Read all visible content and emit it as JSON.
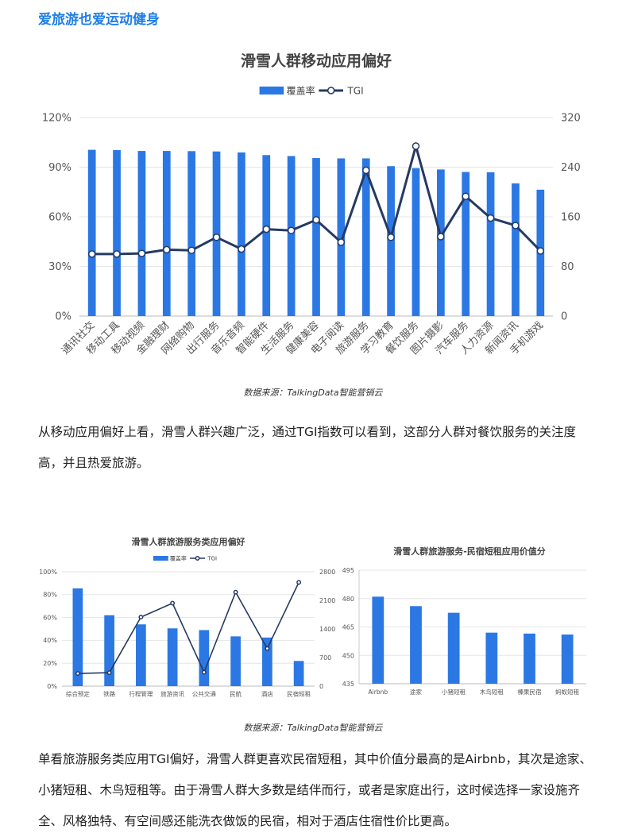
{
  "heading": "爱旅游也爱运动健身",
  "chart_data": [
    {
      "type": "bar",
      "title": "滑雪人群移动应用偏好",
      "legend": {
        "bar": "覆盖率",
        "line": "TGI",
        "position": "top-center"
      },
      "categories": [
        "通讯社交",
        "移动工具",
        "移动视频",
        "金融理财",
        "网络购物",
        "出行服务",
        "音乐音频",
        "智能硬件",
        "生活服务",
        "健康美容",
        "电子阅读",
        "旅游服务",
        "学习教育",
        "餐饮服务",
        "图片摄影",
        "汽车服务",
        "人力资源",
        "新闻资讯",
        "手机游戏"
      ],
      "series": [
        {
          "name": "覆盖率",
          "type": "bar",
          "axis": "left",
          "values": [
            100.5,
            100.3,
            99.8,
            99.8,
            99.7,
            99.5,
            98.9,
            97.3,
            96.7,
            95.5,
            95.3,
            95.3,
            90.6,
            89.4,
            88.6,
            87.1,
            86.9,
            80.2,
            76.4
          ]
        },
        {
          "name": "TGI",
          "type": "line",
          "axis": "right",
          "values": [
            100,
            100,
            101,
            107,
            106,
            127,
            108,
            140,
            138,
            155,
            119,
            235,
            127,
            274,
            128,
            193,
            158,
            146,
            105
          ]
        }
      ],
      "yleft": {
        "ticks": [
          "0%",
          "30%",
          "60%",
          "90%",
          "120%"
        ],
        "range": [
          0,
          120
        ]
      },
      "yright": {
        "ticks": [
          "0",
          "80",
          "160",
          "240",
          "320"
        ],
        "range": [
          0,
          320
        ]
      }
    },
    {
      "type": "bar",
      "title": "滑雪人群旅游服务类应用偏好",
      "legend": {
        "bar": "覆盖率",
        "line": "TGI",
        "position": "top-center"
      },
      "categories": [
        "综合预定",
        "铁路",
        "行程管理",
        "旅游资讯",
        "公共交通",
        "民航",
        "酒店",
        "民宿短租"
      ],
      "series": [
        {
          "name": "覆盖率",
          "type": "bar",
          "axis": "left",
          "values": [
            85.5,
            62,
            54,
            50.5,
            49,
            43.5,
            42.5,
            22
          ]
        },
        {
          "name": "TGI",
          "type": "line",
          "axis": "right",
          "values": [
            310,
            330,
            1690,
            2030,
            340,
            2300,
            920,
            2540
          ]
        }
      ],
      "yleft": {
        "ticks": [
          "0%",
          "20%",
          "40%",
          "60%",
          "80%",
          "100%"
        ],
        "range": [
          0,
          100
        ]
      },
      "yright": {
        "ticks": [
          "0",
          "700",
          "1400",
          "2100",
          "2800"
        ],
        "range": [
          0,
          2800
        ]
      }
    },
    {
      "type": "bar",
      "title": "滑雪人群旅游服务-民宿短租应用价值分",
      "categories": [
        "Airbnb",
        "途家",
        "小猪短租",
        "木鸟短租",
        "榛果民宿",
        "蚂蚁短租"
      ],
      "values": [
        481,
        476,
        472.5,
        462,
        461.5,
        461
      ],
      "yleft": {
        "ticks": [
          "435",
          "450",
          "465",
          "480",
          "495"
        ],
        "range": [
          435,
          495
        ]
      }
    }
  ],
  "captions": {
    "top": "数据来源：TalkingData智能营销云",
    "bottom": "数据来源：TalkingData智能营销云"
  },
  "paragraphs": {
    "p1": "从移动应用偏好上看，滑雪人群兴趣广泛，通过TGI指数可以看到，这部分人群对餐饮服务的关注度高，并且热爱旅游。",
    "p2": "单看旅游服务类应用TGI偏好，滑雪人群更喜欢民宿短租，其中价值分最高的是Airbnb，其次是途家、小猪短租、木鸟短租等。由于滑雪人群大多数是结伴而行，或者是家庭出行，这时候选择一家设施齐全、风格独特、有空间感还能洗衣做饭的民宿，相对于酒店住宿性价比更高。"
  },
  "colors": {
    "bar": "#2b78e4",
    "line": "#253a63",
    "heading": "#1e7ee6",
    "grid": "#e6e6e6",
    "axis_text": "#555555"
  }
}
